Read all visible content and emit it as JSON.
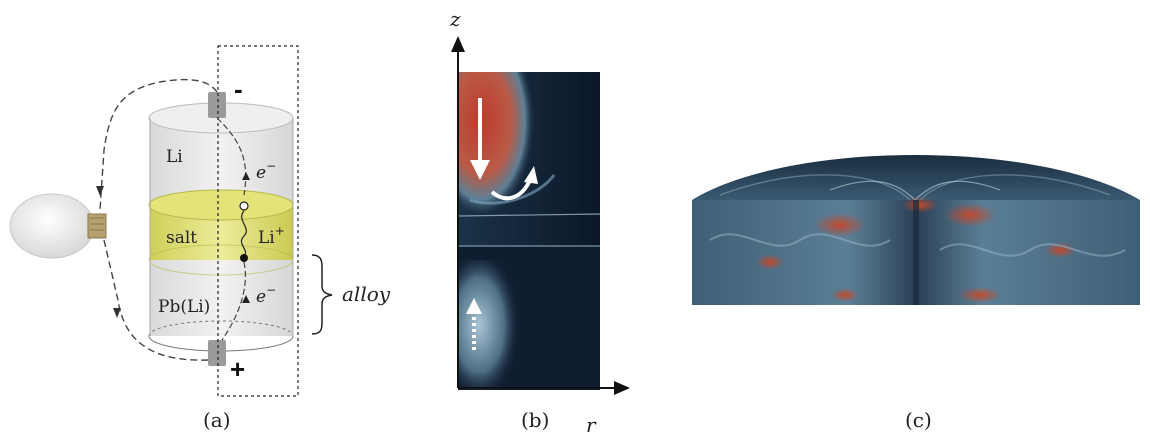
{
  "panel_a": {
    "caption": "(a)",
    "labels": {
      "top_layer": "Li",
      "middle_layer": "salt",
      "ion": "Li",
      "ion_charge": "+",
      "bottom_layer": "Pb(Li)",
      "electron_upper": "e",
      "electron_lower": "e",
      "electron_charge": "−",
      "alloy": "alloy",
      "minus_terminal": "-",
      "plus_terminal": "+"
    },
    "colors": {
      "cell_body": "#e8e8e8",
      "salt_band": "#d9d97a",
      "terminal": "#9a9a9a"
    }
  },
  "panel_b": {
    "caption": "(b)",
    "z_axis_label": "z",
    "r_axis_label": "r",
    "colors": {
      "background": "#0d1b2e",
      "hot": "#c0392b",
      "cool": "#7fa9c4"
    }
  },
  "panel_c": {
    "caption": "(c)",
    "colors": {
      "background": "#1f3a4f",
      "hot": "#b8482e",
      "cool": "#7fa3b8"
    }
  }
}
